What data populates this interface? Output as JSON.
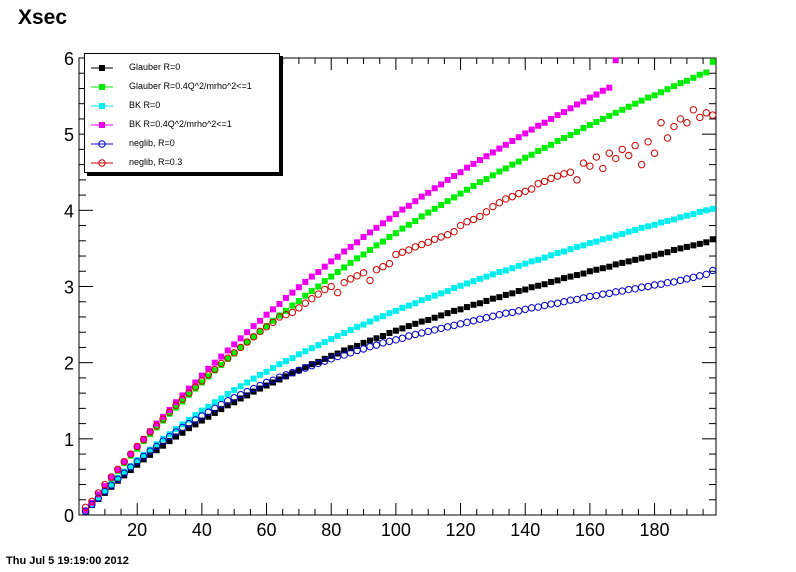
{
  "title": "Xsec",
  "footer": "Thu Jul  5 19:19:00 2012",
  "chart_data": {
    "type": "scatter",
    "title": "Xsec",
    "xlabel": "",
    "ylabel": "",
    "xlim": [
      2,
      199
    ],
    "ylim": [
      0,
      6
    ],
    "x_ticks": [
      "20",
      "40",
      "60",
      "80",
      "100",
      "120",
      "140",
      "160",
      "180"
    ],
    "y_ticks": [
      "0",
      "1",
      "2",
      "3",
      "4",
      "5",
      "6"
    ],
    "grid": false,
    "legend_position": "top-left",
    "x": [
      4,
      6,
      8,
      10,
      12,
      14,
      16,
      18,
      20,
      22,
      24,
      26,
      28,
      30,
      32,
      34,
      36,
      38,
      40,
      42,
      44,
      46,
      48,
      50,
      52,
      54,
      56,
      58,
      60,
      62,
      64,
      66,
      68,
      70,
      72,
      74,
      76,
      78,
      80,
      82,
      84,
      86,
      88,
      90,
      92,
      94,
      96,
      98,
      100,
      102,
      104,
      106,
      108,
      110,
      112,
      114,
      116,
      118,
      120,
      122,
      124,
      126,
      128,
      130,
      132,
      134,
      136,
      138,
      140,
      142,
      144,
      146,
      148,
      150,
      152,
      154,
      156,
      158,
      160,
      162,
      164,
      166,
      168,
      170,
      172,
      174,
      176,
      178,
      180,
      182,
      184,
      186,
      188,
      190,
      192,
      194,
      196,
      198
    ],
    "series": [
      {
        "name": "Glauber R=0",
        "marker": "filled-square",
        "color": "#000000",
        "values": [
          0.05,
          0.13,
          0.21,
          0.29,
          0.37,
          0.45,
          0.52,
          0.59,
          0.66,
          0.73,
          0.79,
          0.85,
          0.91,
          0.97,
          1.03,
          1.08,
          1.14,
          1.19,
          1.24,
          1.29,
          1.34,
          1.39,
          1.44,
          1.48,
          1.53,
          1.57,
          1.62,
          1.66,
          1.7,
          1.74,
          1.78,
          1.82,
          1.86,
          1.9,
          1.94,
          1.98,
          2.01,
          2.05,
          2.09,
          2.12,
          2.16,
          2.19,
          2.22,
          2.26,
          2.29,
          2.32,
          2.35,
          2.39,
          2.42,
          2.45,
          2.48,
          2.51,
          2.54,
          2.56,
          2.59,
          2.62,
          2.65,
          2.68,
          2.7,
          2.73,
          2.76,
          2.78,
          2.81,
          2.84,
          2.86,
          2.89,
          2.91,
          2.94,
          2.96,
          2.99,
          3.01,
          3.03,
          3.06,
          3.08,
          3.11,
          3.13,
          3.15,
          3.17,
          3.2,
          3.22,
          3.24,
          3.26,
          3.29,
          3.31,
          3.33,
          3.35,
          3.37,
          3.39,
          3.41,
          3.43,
          3.45,
          3.48,
          3.5,
          3.52,
          3.54,
          3.56,
          3.58,
          3.62
        ]
      },
      {
        "name": "Glauber R=0.4Q^2/mrho^2<=1",
        "marker": "filled-square",
        "color": "#00ee00",
        "values": [
          0.06,
          0.16,
          0.27,
          0.37,
          0.48,
          0.58,
          0.68,
          0.78,
          0.87,
          0.97,
          1.06,
          1.15,
          1.24,
          1.33,
          1.41,
          1.49,
          1.58,
          1.66,
          1.74,
          1.82,
          1.9,
          1.97,
          2.05,
          2.12,
          2.2,
          2.27,
          2.34,
          2.41,
          2.48,
          2.55,
          2.62,
          2.68,
          2.75,
          2.81,
          2.88,
          2.94,
          3.0,
          3.07,
          3.13,
          3.19,
          3.25,
          3.31,
          3.37,
          3.42,
          3.48,
          3.54,
          3.59,
          3.65,
          3.7,
          3.76,
          3.81,
          3.86,
          3.92,
          3.97,
          4.02,
          4.07,
          4.12,
          4.17,
          4.22,
          4.27,
          4.32,
          4.37,
          4.41,
          4.46,
          4.51,
          4.55,
          4.6,
          4.64,
          4.69,
          4.73,
          4.78,
          4.82,
          4.86,
          4.91,
          4.95,
          4.99,
          5.03,
          5.08,
          5.12,
          5.16,
          5.2,
          5.24,
          5.28,
          5.32,
          5.36,
          5.4,
          5.44,
          5.48,
          5.51,
          5.55,
          5.59,
          5.63,
          5.67,
          5.7,
          5.74,
          5.78,
          5.81,
          5.95
        ]
      },
      {
        "name": "BK R=0",
        "marker": "filled-square",
        "color": "#00eeee",
        "values": [
          0.05,
          0.14,
          0.23,
          0.32,
          0.4,
          0.49,
          0.57,
          0.64,
          0.72,
          0.79,
          0.86,
          0.93,
          1.0,
          1.06,
          1.13,
          1.19,
          1.25,
          1.31,
          1.37,
          1.42,
          1.48,
          1.53,
          1.59,
          1.64,
          1.69,
          1.74,
          1.79,
          1.84,
          1.88,
          1.93,
          1.98,
          2.02,
          2.06,
          2.11,
          2.15,
          2.19,
          2.23,
          2.27,
          2.31,
          2.35,
          2.39,
          2.43,
          2.47,
          2.5,
          2.54,
          2.58,
          2.61,
          2.65,
          2.68,
          2.72,
          2.75,
          2.78,
          2.82,
          2.85,
          2.88,
          2.91,
          2.94,
          2.98,
          3.01,
          3.04,
          3.07,
          3.1,
          3.13,
          3.16,
          3.19,
          3.21,
          3.24,
          3.27,
          3.3,
          3.33,
          3.35,
          3.38,
          3.41,
          3.44,
          3.46,
          3.49,
          3.52,
          3.54,
          3.57,
          3.59,
          3.62,
          3.64,
          3.67,
          3.69,
          3.72,
          3.74,
          3.77,
          3.79,
          3.81,
          3.84,
          3.86,
          3.88,
          3.91,
          3.93,
          3.95,
          3.98,
          4.0,
          4.02
        ]
      },
      {
        "name": "BK R=0.4Q^2/mrho^2<=1",
        "marker": "filled-square",
        "color": "#ee00ee",
        "values": [
          0.06,
          0.16,
          0.27,
          0.38,
          0.49,
          0.59,
          0.7,
          0.8,
          0.9,
          1.0,
          1.1,
          1.2,
          1.29,
          1.38,
          1.48,
          1.57,
          1.66,
          1.74,
          1.83,
          1.92,
          2.0,
          2.08,
          2.16,
          2.24,
          2.32,
          2.4,
          2.48,
          2.55,
          2.63,
          2.7,
          2.77,
          2.85,
          2.92,
          2.99,
          3.06,
          3.13,
          3.19,
          3.26,
          3.33,
          3.39,
          3.46,
          3.52,
          3.58,
          3.65,
          3.71,
          3.77,
          3.83,
          3.89,
          3.95,
          4.01,
          4.06,
          4.12,
          4.18,
          4.23,
          4.29,
          4.34,
          4.4,
          4.45,
          4.5,
          4.56,
          4.61,
          4.66,
          4.71,
          4.76,
          4.81,
          4.86,
          4.91,
          4.96,
          5.01,
          5.06,
          5.11,
          5.15,
          5.2,
          5.25,
          5.29,
          5.34,
          5.39,
          5.43,
          5.48,
          5.52,
          5.57,
          5.61,
          5.97,
          null,
          null,
          null,
          null,
          null,
          null,
          null,
          null,
          null,
          null,
          null,
          null,
          null,
          null,
          null
        ]
      },
      {
        "name": "neglib, R=0",
        "marker": "open-circle",
        "color": "#0000cc",
        "values": [
          0.05,
          0.14,
          0.22,
          0.31,
          0.39,
          0.47,
          0.55,
          0.63,
          0.7,
          0.77,
          0.84,
          0.9,
          0.97,
          1.03,
          1.09,
          1.15,
          1.2,
          1.25,
          1.3,
          1.35,
          1.4,
          1.45,
          1.5,
          1.54,
          1.58,
          1.62,
          1.66,
          1.7,
          1.74,
          1.77,
          1.81,
          1.84,
          1.87,
          1.9,
          1.93,
          1.96,
          1.99,
          2.02,
          2.05,
          2.08,
          2.1,
          2.13,
          2.16,
          2.18,
          2.21,
          2.23,
          2.26,
          2.28,
          2.3,
          2.32,
          2.35,
          2.37,
          2.39,
          2.41,
          2.43,
          2.45,
          2.47,
          2.49,
          2.51,
          2.53,
          2.55,
          2.57,
          2.59,
          2.61,
          2.63,
          2.65,
          2.66,
          2.68,
          2.7,
          2.72,
          2.73,
          2.75,
          2.77,
          2.78,
          2.8,
          2.82,
          2.83,
          2.85,
          2.87,
          2.88,
          2.9,
          2.91,
          2.93,
          2.94,
          2.96,
          2.97,
          2.99,
          3.0,
          3.02,
          3.03,
          3.05,
          3.06,
          3.08,
          3.1,
          3.12,
          3.14,
          3.16,
          3.21
        ]
      },
      {
        "name": "neglib, R=0.3",
        "marker": "open-circle",
        "color": "#cc0000",
        "values": [
          0.1,
          0.18,
          0.29,
          0.4,
          0.5,
          0.6,
          0.7,
          0.8,
          0.9,
          0.99,
          1.09,
          1.17,
          1.26,
          1.35,
          1.44,
          1.52,
          1.6,
          1.68,
          1.76,
          1.84,
          1.91,
          1.99,
          2.06,
          2.13,
          2.2,
          2.27,
          2.34,
          2.41,
          2.47,
          2.53,
          2.6,
          2.63,
          2.66,
          2.72,
          2.78,
          2.84,
          2.9,
          2.96,
          3.0,
          2.92,
          3.05,
          3.1,
          3.14,
          3.18,
          3.08,
          3.22,
          3.26,
          3.3,
          3.42,
          3.45,
          3.48,
          3.52,
          3.55,
          3.58,
          3.62,
          3.65,
          3.68,
          3.72,
          3.8,
          3.85,
          3.88,
          3.92,
          3.98,
          4.05,
          4.1,
          4.15,
          4.18,
          4.22,
          4.25,
          4.28,
          4.35,
          4.38,
          4.42,
          4.45,
          4.48,
          4.5,
          4.4,
          4.62,
          4.58,
          4.7,
          4.55,
          4.75,
          4.68,
          4.8,
          4.72,
          4.85,
          4.6,
          4.9,
          4.75,
          5.15,
          4.95,
          5.1,
          5.2,
          5.15,
          5.32,
          5.22,
          5.28,
          5.25
        ]
      }
    ]
  }
}
